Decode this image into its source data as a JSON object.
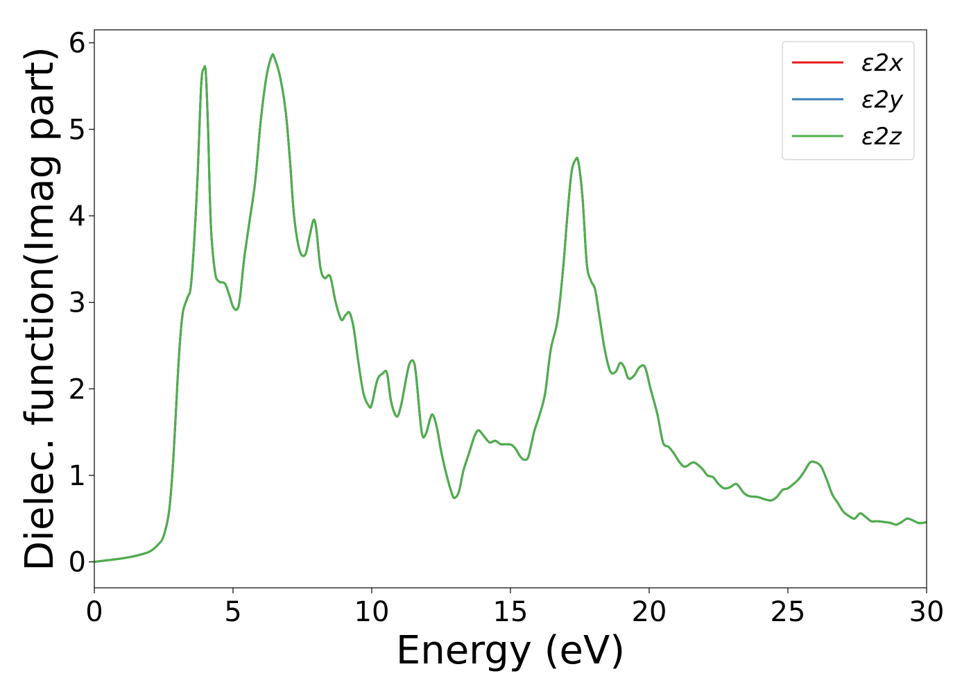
{
  "chart_data": {
    "type": "line",
    "xlabel": "Energy (eV)",
    "ylabel": "Dielec. function(Imag part)",
    "xlim": [
      0,
      30
    ],
    "ylim": [
      -0.3,
      6.15
    ],
    "xticks": [
      0,
      5,
      10,
      15,
      20,
      25,
      30
    ],
    "yticks": [
      0,
      1,
      2,
      3,
      4,
      5,
      6
    ],
    "grid": false,
    "legend_position": "top-right",
    "series": [
      {
        "name": "ε2x",
        "color": "#e41a1c"
      },
      {
        "name": "ε2y",
        "color": "#377eb8"
      },
      {
        "name": "ε2z",
        "color": "#4daf4a"
      }
    ],
    "x": [
      0,
      0.5,
      1.0,
      1.5,
      2.0,
      2.3,
      2.5,
      2.7,
      2.85,
      3.0,
      3.1,
      3.2,
      3.35,
      3.5,
      3.7,
      3.85,
      3.95,
      4.02,
      4.1,
      4.2,
      4.35,
      4.5,
      4.7,
      4.85,
      5.0,
      5.15,
      5.25,
      5.4,
      5.6,
      5.8,
      6.0,
      6.2,
      6.4,
      6.5,
      6.7,
      6.9,
      7.05,
      7.2,
      7.4,
      7.6,
      7.75,
      7.9,
      8.0,
      8.15,
      8.3,
      8.5,
      8.7,
      8.9,
      9.05,
      9.2,
      9.35,
      9.5,
      9.7,
      9.9,
      10.0,
      10.2,
      10.4,
      10.55,
      10.7,
      10.9,
      11.05,
      11.2,
      11.35,
      11.5,
      11.6,
      11.8,
      11.95,
      12.1,
      12.2,
      12.35,
      12.5,
      12.7,
      12.9,
      13.0,
      13.15,
      13.3,
      13.5,
      13.7,
      13.85,
      14.05,
      14.25,
      14.45,
      14.65,
      14.85,
      15.05,
      15.2,
      15.35,
      15.5,
      15.65,
      15.85,
      16.05,
      16.25,
      16.45,
      16.7,
      16.9,
      17.05,
      17.2,
      17.35,
      17.45,
      17.6,
      17.75,
      17.9,
      18.05,
      18.2,
      18.4,
      18.6,
      18.8,
      18.95,
      19.1,
      19.25,
      19.45,
      19.65,
      19.85,
      20.05,
      20.3,
      20.5,
      20.7,
      20.9,
      21.1,
      21.3,
      21.6,
      21.9,
      22.1,
      22.3,
      22.5,
      22.7,
      22.9,
      23.15,
      23.4,
      23.6,
      23.9,
      24.2,
      24.4,
      24.6,
      24.8,
      25.0,
      25.2,
      25.4,
      25.6,
      25.8,
      26.0,
      26.2,
      26.4,
      26.6,
      26.8,
      27.0,
      27.2,
      27.4,
      27.6,
      27.8,
      28.0,
      28.2,
      28.5,
      28.7,
      28.9,
      29.1,
      29.3,
      29.5,
      29.7,
      29.85,
      30.0
    ],
    "y": [
      0.0,
      0.02,
      0.04,
      0.07,
      0.12,
      0.2,
      0.3,
      0.6,
      1.2,
      2.1,
      2.6,
      2.9,
      3.05,
      3.25,
      4.3,
      5.5,
      5.7,
      5.65,
      5.0,
      3.9,
      3.35,
      3.24,
      3.22,
      3.1,
      2.95,
      2.92,
      3.05,
      3.5,
      3.95,
      4.4,
      5.1,
      5.6,
      5.85,
      5.82,
      5.6,
      5.2,
      4.65,
      4.0,
      3.6,
      3.55,
      3.75,
      3.95,
      3.85,
      3.4,
      3.28,
      3.3,
      3.0,
      2.8,
      2.85,
      2.88,
      2.7,
      2.35,
      1.95,
      1.8,
      1.82,
      2.1,
      2.18,
      2.18,
      1.85,
      1.68,
      1.8,
      2.05,
      2.28,
      2.32,
      2.15,
      1.5,
      1.48,
      1.65,
      1.7,
      1.55,
      1.28,
      1.0,
      0.78,
      0.74,
      0.82,
      1.05,
      1.25,
      1.45,
      1.52,
      1.45,
      1.38,
      1.4,
      1.36,
      1.36,
      1.35,
      1.3,
      1.22,
      1.18,
      1.22,
      1.5,
      1.7,
      1.95,
      2.45,
      2.8,
      3.4,
      4.0,
      4.5,
      4.65,
      4.62,
      4.2,
      3.45,
      3.25,
      3.15,
      2.85,
      2.45,
      2.2,
      2.2,
      2.3,
      2.25,
      2.12,
      2.15,
      2.25,
      2.25,
      2.0,
      1.7,
      1.38,
      1.33,
      1.25,
      1.15,
      1.1,
      1.15,
      1.08,
      1.0,
      0.98,
      0.9,
      0.85,
      0.86,
      0.9,
      0.8,
      0.76,
      0.75,
      0.72,
      0.71,
      0.75,
      0.83,
      0.85,
      0.9,
      0.96,
      1.05,
      1.15,
      1.15,
      1.1,
      0.95,
      0.78,
      0.68,
      0.58,
      0.53,
      0.5,
      0.56,
      0.52,
      0.47,
      0.47,
      0.46,
      0.45,
      0.43,
      0.46,
      0.5,
      0.48,
      0.45,
      0.45,
      0.46
    ]
  }
}
